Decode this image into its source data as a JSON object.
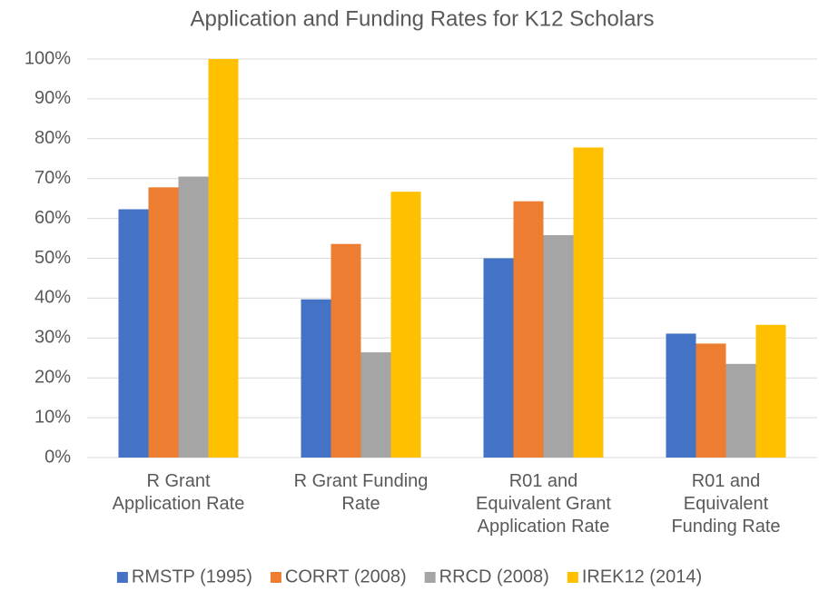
{
  "chart_data": {
    "type": "bar",
    "title": "Application and Funding Rates for K12 Scholars",
    "categories": [
      "R Grant Application Rate",
      "R Grant Funding Rate",
      "R01 and Equivalent Grant Application Rate",
      "R01 and Equivalent Funding Rate"
    ],
    "series": [
      {
        "name": "RMSTP (1995)",
        "color": "#4472c4",
        "values": [
          62.3,
          39.7,
          50,
          31.1
        ]
      },
      {
        "name": "CORRT (2008)",
        "color": "#ed7d31",
        "values": [
          67.8,
          53.6,
          64.3,
          28.6
        ]
      },
      {
        "name": "RRCD (2008)",
        "color": "#a5a5a5",
        "values": [
          70.5,
          26.4,
          55.8,
          23.5
        ]
      },
      {
        "name": "IREK12 (2014)",
        "color": "#ffc000",
        "values": [
          100,
          66.7,
          77.8,
          33.3
        ]
      }
    ],
    "ylim": [
      0,
      100
    ],
    "yticks": [
      {
        "value": 0,
        "label": "0%"
      },
      {
        "value": 10,
        "label": "10%"
      },
      {
        "value": 20,
        "label": "20%"
      },
      {
        "value": 30,
        "label": "30%"
      },
      {
        "value": 40,
        "label": "40%"
      },
      {
        "value": 50,
        "label": "50%"
      },
      {
        "value": 60,
        "label": "60%"
      },
      {
        "value": 70,
        "label": "70%"
      },
      {
        "value": 80,
        "label": "80%"
      },
      {
        "value": 90,
        "label": "90%"
      },
      {
        "value": 100,
        "label": "100%"
      }
    ],
    "grid": true,
    "legend": "bottom"
  }
}
